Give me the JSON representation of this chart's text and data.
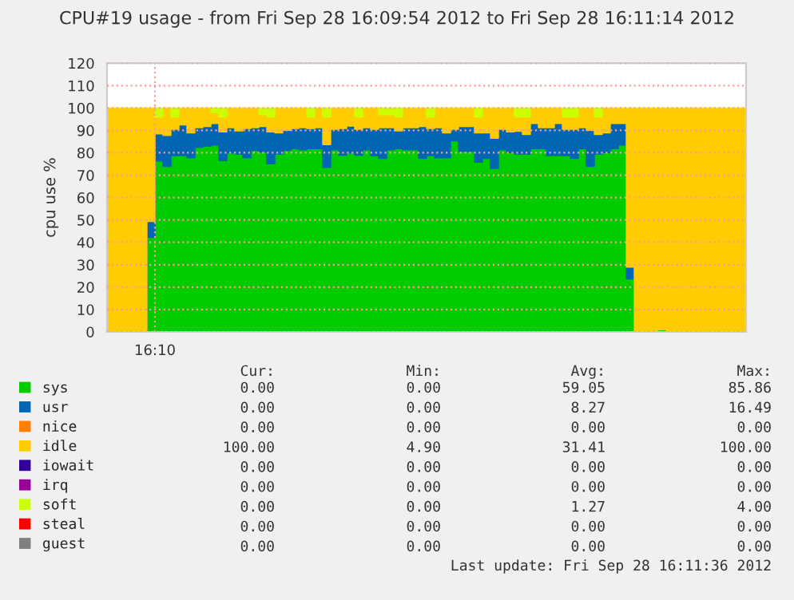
{
  "chart_data": {
    "type": "area",
    "stacked": true,
    "title": "CPU#19 usage - from Fri Sep 28 16:09:54 2012 to Fri Sep 28 16:11:14 2012",
    "ylabel": "cpu use %",
    "categories": [
      null,
      null,
      null,
      null,
      null,
      null,
      "16:10",
      null,
      null,
      null,
      null,
      null,
      null,
      null,
      null,
      null,
      null,
      null,
      null,
      null,
      null,
      null,
      null,
      null,
      null,
      null,
      null,
      null,
      null,
      null,
      null,
      null,
      null,
      null,
      null,
      null,
      null,
      null,
      null,
      null,
      null,
      null,
      null,
      null,
      null,
      null,
      null,
      null,
      null,
      null,
      null,
      null,
      null,
      null,
      null,
      null,
      null,
      null,
      null,
      null,
      null,
      null,
      null,
      null,
      null,
      null,
      null,
      null,
      null,
      null,
      null,
      null,
      null,
      null,
      null,
      null,
      null,
      null,
      null,
      null,
      null
    ],
    "series": [
      {
        "name": "sys",
        "color": "#00cc00",
        "values": [
          0,
          0,
          0,
          0,
          0,
          42.2,
          76.3,
          73.9,
          78.7,
          78.7,
          77.7,
          82.5,
          82.9,
          83.4,
          76.5,
          79.9,
          79.4,
          77.7,
          81.0,
          80.3,
          75.1,
          79.4,
          81.0,
          81.8,
          81.3,
          81.8,
          81.8,
          73.5,
          81.3,
          78.9,
          79.9,
          78.9,
          81.3,
          78.7,
          77.5,
          81.3,
          81.8,
          81.3,
          81.3,
          77.5,
          78.7,
          77.7,
          77.7,
          85.3,
          80.6,
          80.6,
          75.8,
          77.5,
          73.0,
          81.3,
          80.1,
          79.4,
          79.4,
          81.8,
          81.8,
          78.7,
          78.7,
          78.7,
          77.5,
          81.8,
          73.9,
          79.4,
          80.1,
          81.8,
          83.4,
          23.7,
          0,
          0,
          0,
          1,
          0,
          0,
          0,
          0,
          0,
          0,
          0,
          0,
          0,
          0,
          0
        ]
      },
      {
        "name": "usr",
        "color": "#0066b3",
        "values": [
          0,
          0,
          0,
          0,
          0,
          7.1,
          12.1,
          13.8,
          11.8,
          13.7,
          11.2,
          8.7,
          8.8,
          9.7,
          12.8,
          11.3,
          10.4,
          13.1,
          10.2,
          11.4,
          14.2,
          9.5,
          9.0,
          9.0,
          9.9,
          9.0,
          9.4,
          10.1,
          9.2,
          11.9,
          12.0,
          11.6,
          9.9,
          11.8,
          13.7,
          9.9,
          8.0,
          9.9,
          9.9,
          14.2,
          12.1,
          13.5,
          11.2,
          5.2,
          11.1,
          11.1,
          13.1,
          11.4,
          13.5,
          9.2,
          9.2,
          10.2,
          8.8,
          11.3,
          9.4,
          12.5,
          14.4,
          11.8,
          13.0,
          9.4,
          16.1,
          8.8,
          8.8,
          11.3,
          9.7,
          5.2,
          0,
          0,
          0,
          0,
          0,
          0,
          0,
          0,
          0,
          0,
          0,
          0,
          0,
          0,
          0
        ]
      },
      {
        "name": "nice",
        "color": "#ff8000",
        "values": [
          null,
          null,
          null,
          null,
          null,
          null,
          null,
          null,
          null,
          null,
          null,
          null,
          null,
          null,
          null,
          null,
          null,
          null,
          null,
          null,
          null,
          null,
          null,
          null,
          null,
          null,
          null,
          null,
          null,
          null,
          null,
          null,
          null,
          null,
          null,
          null,
          null,
          null,
          null,
          null,
          null,
          null,
          null,
          null,
          null,
          null,
          null,
          null,
          null,
          null,
          null,
          null,
          null,
          null,
          null,
          null,
          null,
          null,
          null,
          null,
          null,
          null,
          null,
          null,
          null,
          null,
          null,
          null,
          null,
          null,
          null,
          null,
          null,
          null,
          null,
          null,
          null,
          null,
          null,
          null,
          null
        ]
      },
      {
        "name": "idle",
        "color": "#ffcc00",
        "values": [
          100,
          100,
          100,
          100,
          100,
          50.7,
          7.6,
          12.3,
          5.5,
          7.6,
          11.1,
          8.8,
          8.3,
          4.9,
          6.7,
          8.8,
          10.2,
          9.2,
          8.8,
          5.3,
          6.7,
          11.1,
          10.0,
          9.2,
          8.8,
          5.2,
          8.8,
          12.4,
          9.5,
          9.2,
          8.1,
          5.5,
          8.8,
          9.5,
          5.8,
          5.8,
          6.2,
          8.8,
          8.8,
          8.3,
          5.2,
          8.8,
          11.1,
          9.5,
          8.3,
          8.3,
          7.1,
          11.1,
          13.5,
          9.5,
          10.7,
          6.4,
          7.8,
          6.9,
          8.8,
          8.8,
          6.9,
          5.5,
          5.5,
          8.8,
          10.0,
          7.8,
          11.1,
          6.9,
          6.9,
          71.1,
          100,
          100,
          100,
          99,
          100,
          100,
          100,
          100,
          100,
          100,
          100,
          100,
          100,
          100,
          100
        ]
      },
      {
        "name": "iowait",
        "color": "#330099",
        "values": [
          null,
          null,
          null,
          null,
          null,
          null,
          null,
          null,
          null,
          null,
          null,
          null,
          null,
          null,
          null,
          null,
          null,
          null,
          null,
          null,
          null,
          null,
          null,
          null,
          null,
          null,
          null,
          null,
          null,
          null,
          null,
          null,
          null,
          null,
          null,
          null,
          null,
          null,
          null,
          null,
          null,
          null,
          null,
          null,
          null,
          null,
          null,
          null,
          null,
          null,
          null,
          null,
          null,
          null,
          null,
          null,
          null,
          null,
          null,
          null,
          null,
          null,
          null,
          null,
          null,
          null,
          null,
          null,
          null,
          null,
          null,
          null,
          null,
          null,
          null,
          null,
          null,
          null,
          null,
          null,
          null
        ]
      },
      {
        "name": "irq",
        "color": "#990099",
        "values": [
          null,
          null,
          null,
          null,
          null,
          null,
          null,
          null,
          null,
          null,
          null,
          null,
          null,
          null,
          null,
          null,
          null,
          null,
          null,
          null,
          null,
          null,
          null,
          null,
          null,
          null,
          null,
          null,
          null,
          null,
          null,
          null,
          null,
          null,
          null,
          null,
          null,
          null,
          null,
          null,
          null,
          null,
          null,
          null,
          null,
          null,
          null,
          null,
          null,
          null,
          null,
          null,
          null,
          null,
          null,
          null,
          null,
          null,
          null,
          null,
          null,
          null,
          null,
          null,
          null,
          null,
          null,
          null,
          null,
          null,
          null,
          null,
          null,
          null,
          null,
          null,
          null,
          null,
          null,
          null,
          null
        ]
      },
      {
        "name": "soft",
        "color": "#ccff00",
        "values": [
          0,
          0,
          0,
          0,
          0,
          0,
          4,
          0,
          4,
          0,
          0,
          0,
          0,
          2,
          4,
          0,
          0,
          0,
          0,
          3,
          4,
          0,
          0,
          0,
          0,
          4,
          0,
          4,
          0,
          0,
          0,
          4,
          0,
          0,
          3,
          3,
          4,
          0,
          0,
          0,
          4,
          0,
          0,
          0,
          0,
          0,
          4,
          0,
          0,
          0,
          0,
          4,
          4,
          0,
          0,
          0,
          0,
          4,
          4,
          0,
          0,
          4,
          0,
          0,
          0,
          0,
          0,
          0,
          0,
          0,
          0,
          0,
          0,
          0,
          0,
          0,
          0,
          0,
          0,
          0,
          0
        ]
      },
      {
        "name": "steal",
        "color": "#ff0000",
        "values": [
          null,
          null,
          null,
          null,
          null,
          null,
          null,
          null,
          null,
          null,
          null,
          null,
          null,
          null,
          null,
          null,
          null,
          null,
          null,
          null,
          null,
          null,
          null,
          null,
          null,
          null,
          null,
          null,
          null,
          null,
          null,
          null,
          null,
          null,
          null,
          null,
          null,
          null,
          null,
          null,
          null,
          null,
          null,
          null,
          null,
          null,
          null,
          null,
          null,
          null,
          null,
          null,
          null,
          null,
          null,
          null,
          null,
          null,
          null,
          null,
          null,
          null,
          null,
          null,
          null,
          null,
          null,
          null,
          null,
          null,
          null,
          null,
          null,
          null,
          null,
          null,
          null,
          null,
          null,
          null,
          null
        ]
      },
      {
        "name": "guest",
        "color": "#808080",
        "values": [
          null,
          null,
          null,
          null,
          null,
          null,
          null,
          null,
          null,
          null,
          null,
          null,
          null,
          null,
          null,
          null,
          null,
          null,
          null,
          null,
          null,
          null,
          null,
          null,
          null,
          null,
          null,
          null,
          null,
          null,
          null,
          null,
          null,
          null,
          null,
          null,
          null,
          null,
          null,
          null,
          null,
          null,
          null,
          null,
          null,
          null,
          null,
          null,
          null,
          null,
          null,
          null,
          null,
          null,
          null,
          null,
          null,
          null,
          null,
          null,
          null,
          null,
          null,
          null,
          null,
          null,
          null,
          null,
          null,
          null,
          null,
          null,
          null,
          null,
          null,
          null,
          null,
          null,
          null,
          null,
          null
        ]
      }
    ],
    "ylim": [
      0,
      120
    ],
    "yticks": [
      0,
      10,
      20,
      30,
      40,
      50,
      60,
      70,
      80,
      90,
      100,
      110,
      120
    ],
    "grid": true,
    "legend": "bottom",
    "annotations": [
      "Cur:",
      "Min:",
      "Avg:",
      "Max:",
      "0.00",
      "0.00",
      "59.05",
      "85.86",
      "0.00",
      "0.00",
      "8.27",
      "16.49",
      "0.00",
      "0.00",
      "0.00",
      "0.00",
      "100.00",
      "4.90",
      "31.41",
      "100.00",
      "0.00",
      "0.00",
      "0.00",
      "0.00",
      "0.00",
      "0.00",
      "0.00",
      "0.00",
      "0.00",
      "0.00",
      "1.27",
      "4.00",
      "0.00",
      "0.00",
      "0.00",
      "0.00",
      "0.00",
      "0.00",
      "0.00",
      "0.00",
      "Last update: Fri Sep 28 16:11:36 2012"
    ]
  }
}
